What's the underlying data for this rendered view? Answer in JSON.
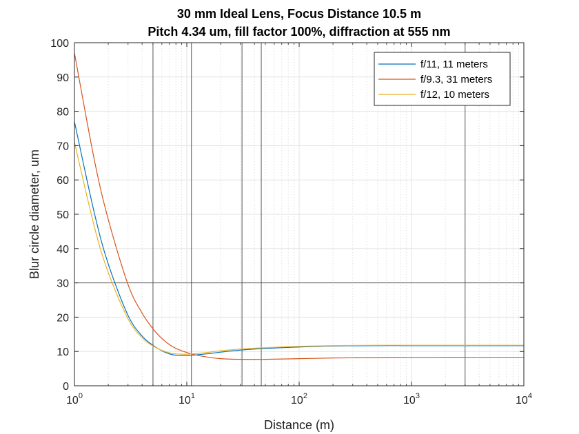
{
  "chart_data": {
    "type": "line",
    "title": "30 mm Ideal Lens, Focus Distance 10.5 m",
    "subtitle": "Pitch 4.34 um, fill factor 100%, diffraction at 555 nm",
    "xlabel": "Distance (m)",
    "ylabel": "Blur circle diameter, um",
    "xscale": "log",
    "xlim": [
      1,
      10000
    ],
    "ylim": [
      0,
      100
    ],
    "grid": true,
    "minor_grid": true,
    "legend_position": "top-right",
    "x_ticks": [
      {
        "base": "10",
        "exp": "0",
        "value": 1
      },
      {
        "base": "10",
        "exp": "1",
        "value": 10
      },
      {
        "base": "10",
        "exp": "2",
        "value": 100
      },
      {
        "base": "10",
        "exp": "3",
        "value": 1000
      },
      {
        "base": "10",
        "exp": "4",
        "value": 10000
      }
    ],
    "y_ticks": [
      "0",
      "10",
      "20",
      "30",
      "40",
      "50",
      "60",
      "70",
      "80",
      "90",
      "100"
    ],
    "reference_lines": {
      "horizontal": [
        30
      ],
      "vertical": [
        5,
        11,
        31,
        46,
        3000
      ]
    },
    "x": [
      1,
      1.5,
      2,
      3,
      4,
      5,
      6,
      7,
      8,
      9,
      10,
      11,
      12,
      15,
      20,
      30,
      50,
      100,
      200,
      500,
      1000,
      3000,
      10000
    ],
    "series": [
      {
        "name": "f/11, 11 meters",
        "color": "#0072BD",
        "values": [
          77,
          50.5,
          35.5,
          20.5,
          14.5,
          11.8,
          10.2,
          9.3,
          8.9,
          8.8,
          8.8,
          8.9,
          9.0,
          9.3,
          9.8,
          10.4,
          10.9,
          11.3,
          11.6,
          11.7,
          11.7,
          11.7,
          11.7
        ]
      },
      {
        "name": "f/9.3, 31 meters",
        "color": "#D95319",
        "values": [
          97,
          66,
          48.5,
          29.5,
          21.2,
          16.6,
          13.8,
          12.0,
          10.9,
          10.2,
          9.7,
          9.3,
          9.0,
          8.4,
          7.9,
          7.7,
          7.7,
          7.9,
          8.1,
          8.2,
          8.3,
          8.3,
          8.3
        ]
      },
      {
        "name": "f/12, 10 meters",
        "color": "#EDB120",
        "values": [
          71,
          46.5,
          33,
          19.5,
          14,
          11.6,
          10.3,
          9.6,
          9.3,
          9.2,
          9.2,
          9.3,
          9.4,
          9.7,
          10.2,
          10.7,
          11.1,
          11.5,
          11.7,
          11.8,
          11.8,
          11.8,
          11.8
        ]
      }
    ]
  }
}
